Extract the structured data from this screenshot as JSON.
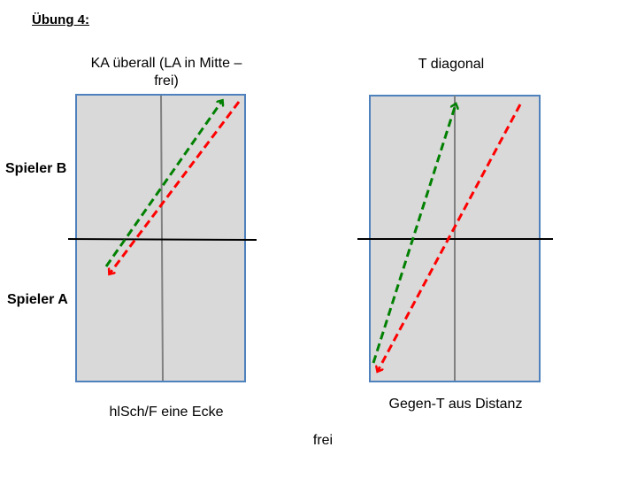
{
  "slide_title": "Übung 4:",
  "player_labels": {
    "top": "Spieler B",
    "bottom": "Spieler A"
  },
  "left_diagram": {
    "heading": "KA überall (LA in Mitte – frei)",
    "caption": "hlSch/F eine Ecke"
  },
  "right_diagram": {
    "heading": "T diagonal",
    "caption": "Gegen-T aus Distanz"
  },
  "footer_note": "frei",
  "colors": {
    "court_fill": "#d9d9d9",
    "court_border": "#4f81bd",
    "center_line": "#808080",
    "net": "#000000",
    "green_arrow": "#008000",
    "red_arrow": "#ff0000"
  }
}
